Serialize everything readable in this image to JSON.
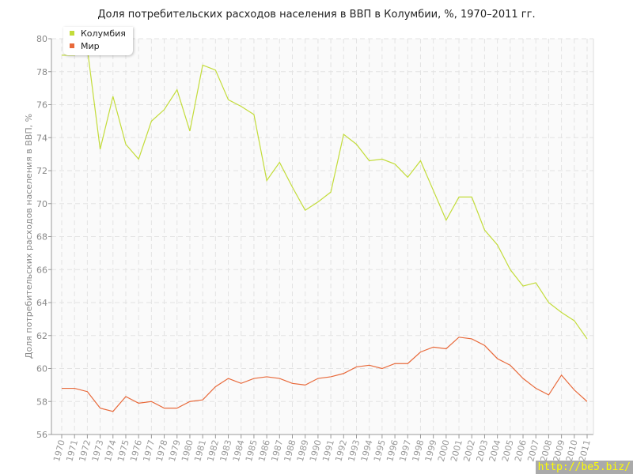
{
  "chart_data": {
    "type": "line",
    "title": "Доля потребительских расходов населения в ВВП в Колумбии, %, 1970–2011 гг.",
    "ylabel": "Доля потребительских расходов населения в ВВП, %",
    "xlabel": "",
    "ylim": [
      56,
      80
    ],
    "yticks": [
      56,
      58,
      60,
      62,
      64,
      66,
      68,
      70,
      72,
      74,
      76,
      78,
      80
    ],
    "grid": true,
    "legend_position": "top-left",
    "x": [
      1970,
      1971,
      1972,
      1973,
      1974,
      1975,
      1976,
      1977,
      1978,
      1979,
      1980,
      1981,
      1982,
      1983,
      1984,
      1985,
      1986,
      1987,
      1988,
      1989,
      1990,
      1991,
      1992,
      1993,
      1994,
      1995,
      1996,
      1997,
      1998,
      1999,
      2000,
      2001,
      2002,
      2003,
      2004,
      2005,
      2006,
      2007,
      2008,
      2009,
      2010,
      2011
    ],
    "series": [
      {
        "name": "Колумбия",
        "color": "#c3dc3a",
        "values": [
          79.0,
          79.0,
          79.4,
          73.3,
          76.5,
          73.6,
          72.7,
          75.0,
          75.7,
          76.9,
          74.4,
          78.4,
          78.1,
          76.3,
          75.9,
          75.4,
          71.4,
          72.5,
          71.0,
          69.6,
          70.1,
          70.7,
          74.2,
          73.6,
          72.6,
          72.7,
          72.4,
          71.6,
          72.6,
          70.8,
          69.0,
          70.4,
          70.4,
          68.4,
          67.5,
          66.0,
          65.0,
          65.2,
          64.0,
          63.4,
          62.9,
          61.8
        ]
      },
      {
        "name": "Мир",
        "color": "#e8693a",
        "values": [
          58.8,
          58.8,
          58.6,
          57.6,
          57.4,
          58.3,
          57.9,
          58.0,
          57.6,
          57.6,
          58.0,
          58.1,
          58.9,
          59.4,
          59.1,
          59.4,
          59.5,
          59.4,
          59.1,
          59.0,
          59.4,
          59.5,
          59.7,
          60.1,
          60.2,
          60.0,
          60.3,
          60.3,
          61.0,
          61.3,
          61.2,
          61.9,
          61.8,
          61.4,
          60.6,
          60.2,
          59.4,
          58.8,
          58.4,
          59.6,
          58.7,
          58.0
        ]
      }
    ]
  },
  "watermark": "http://be5.biz/"
}
